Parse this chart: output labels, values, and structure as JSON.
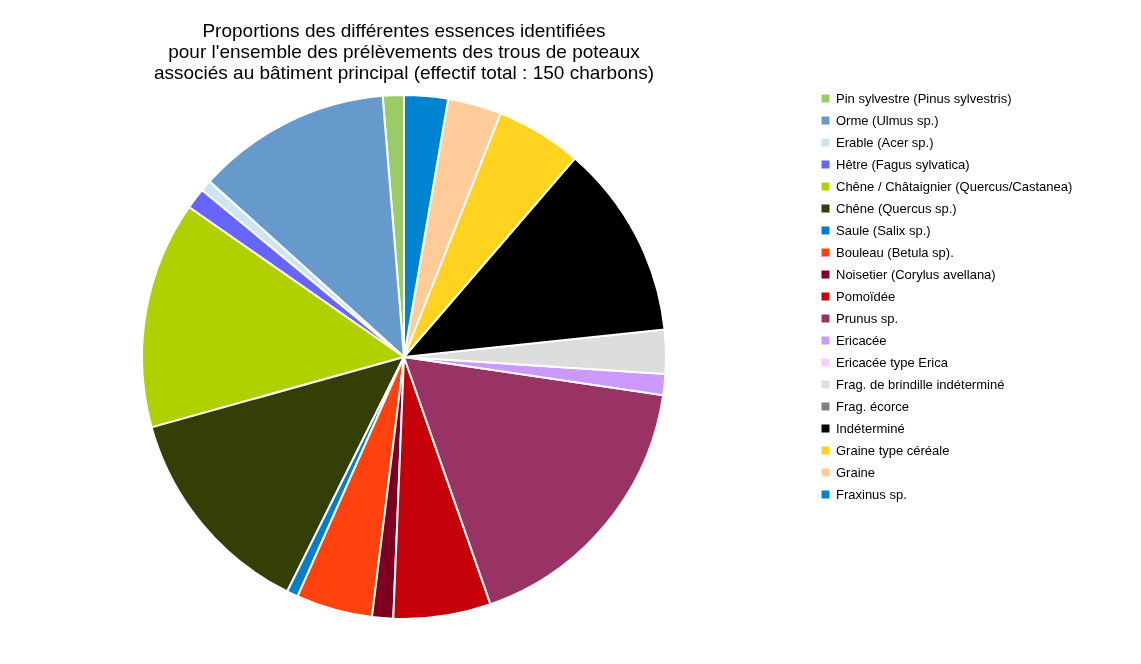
{
  "chart_data": {
    "type": "pie",
    "title": [
      "Proportions des différentes essences identifiées",
      "pour l'ensemble des prélèvements des trous de poteaux",
      "associés au bâtiment principal (effectif total : 150 charbons)"
    ],
    "categories": [
      "Pin sylvestre (Pinus sylvestris)",
      "Orme (Ulmus sp.)",
      "Erable (Acer sp.)",
      "Hêtre (Fagus sylvatica)",
      "Chêne / Châtaignier (Quercus/Castanea)",
      "Chêne (Quercus sp.)",
      "Saule (Salix sp.)",
      "Bouleau (Betula sp).",
      "Noisetier (Corylus avellana)",
      "Pomoïdée",
      "Prunus sp.",
      "Ericacée",
      "Ericacée type Erica",
      "Frag. de brindille indéterminé",
      "Frag. écorce",
      "Indéterminé",
      "Graine type céréale",
      "Graine",
      "Fraxinus sp."
    ],
    "values": [
      1.3,
      12,
      0.7,
      1.3,
      14,
      13.3,
      0.7,
      4.7,
      1.3,
      6,
      17.3,
      1.3,
      0,
      2.7,
      0,
      12,
      5.3,
      3.3,
      2.7
    ],
    "colors": [
      "#99cc66",
      "#6699cc",
      "#cce5f5",
      "#6666ff",
      "#b0d000",
      "#333f05",
      "#0080cc",
      "#ff420e",
      "#7e0021",
      "#c5000b",
      "#993366",
      "#cc99ff",
      "#ffccff",
      "#dddddd",
      "#808080",
      "#000000",
      "#ffd320",
      "#ffcc99",
      "#0084d1"
    ],
    "legend": "right"
  }
}
